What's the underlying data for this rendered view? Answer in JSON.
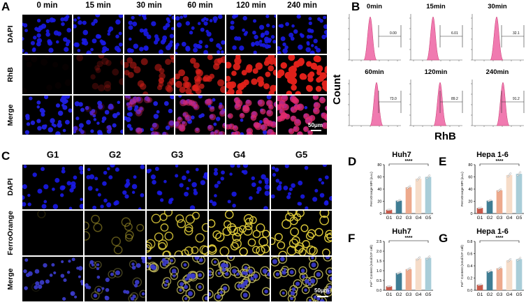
{
  "panelA": {
    "label": "A",
    "timepoints": [
      "0 min",
      "15 min",
      "30 min",
      "60 min",
      "120 min",
      "240 min"
    ],
    "rows": [
      "DAPI",
      "RhB",
      "Merge"
    ],
    "rhb_intensity": [
      0.03,
      0.2,
      0.45,
      0.65,
      0.85,
      0.95
    ],
    "scale_bar": "50μm"
  },
  "panelB": {
    "label": "B",
    "titles": [
      "0min",
      "15min",
      "30min",
      "60min",
      "120min",
      "240min"
    ],
    "values": [
      "0.00",
      "6.01",
      "32.1",
      "73.0",
      "89.2",
      "91.2"
    ],
    "ylabel": "Count",
    "xlabel": "RhB",
    "peak_color": "#f07ab0"
  },
  "panelC": {
    "label": "C",
    "groups": [
      "G1",
      "G2",
      "G3",
      "G4",
      "G5"
    ],
    "rows": [
      "DAPI",
      "FerroOrange",
      "Merge"
    ],
    "ferro_intensity": [
      0.02,
      0.3,
      0.75,
      0.85,
      0.85
    ],
    "scale_bar": "50μm"
  },
  "chart_data": [
    {
      "panel": "D",
      "type": "bar",
      "title": "Huh7",
      "categories": [
        "G1",
        "G2",
        "G3",
        "G4",
        "G5"
      ],
      "values": [
        6,
        21,
        43,
        57,
        60
      ],
      "ylabel": "FerroOrange MFI (a.u.)",
      "ylim": [
        0,
        80
      ],
      "yticks": [
        0,
        20,
        40,
        60,
        80
      ],
      "significance": "****",
      "colors": [
        "#c8594a",
        "#3f7d94",
        "#eda98c",
        "#f6dcc8",
        "#a9cdd8"
      ]
    },
    {
      "panel": "E",
      "type": "bar",
      "title": "Hepa 1-6",
      "categories": [
        "G1",
        "G2",
        "G3",
        "G4",
        "G5"
      ],
      "values": [
        9,
        21,
        38,
        63,
        65
      ],
      "ylabel": "FerroOrange MFI (a.u.)",
      "ylim": [
        0,
        80
      ],
      "yticks": [
        0,
        20,
        40,
        60,
        80
      ],
      "significance": "****",
      "colors": [
        "#c8594a",
        "#3f7d94",
        "#eda98c",
        "#f6dcc8",
        "#a9cdd8"
      ]
    },
    {
      "panel": "F",
      "type": "bar",
      "title": "Huh7",
      "categories": [
        "G1",
        "G2",
        "G3",
        "G4",
        "G5"
      ],
      "values": [
        0.2,
        0.88,
        1.08,
        1.62,
        1.66
      ],
      "ylabel": "Fe²⁺ Content (nmol/10⁶ cell)",
      "ylim": [
        0,
        2.5
      ],
      "yticks": [
        "0.0",
        "0.5",
        "1.0",
        "1.5",
        "2.0",
        "2.5"
      ],
      "significance": "****",
      "colors": [
        "#c8594a",
        "#3f7d94",
        "#eda98c",
        "#f6dcc8",
        "#a9cdd8"
      ]
    },
    {
      "panel": "G",
      "type": "bar",
      "title": "Hepa 1-6",
      "categories": [
        "G1",
        "G2",
        "G3",
        "G4",
        "G5"
      ],
      "values": [
        0.09,
        0.31,
        0.36,
        0.49,
        0.51
      ],
      "ylabel": "Fe²⁺ Content (nmol/10⁶ cell)",
      "ylim": [
        0,
        0.8
      ],
      "yticks": [
        "0.0",
        "0.2",
        "0.4",
        "0.6",
        "0.8"
      ],
      "significance": "****",
      "colors": [
        "#c8594a",
        "#3f7d94",
        "#eda98c",
        "#f6dcc8",
        "#a9cdd8"
      ]
    }
  ]
}
